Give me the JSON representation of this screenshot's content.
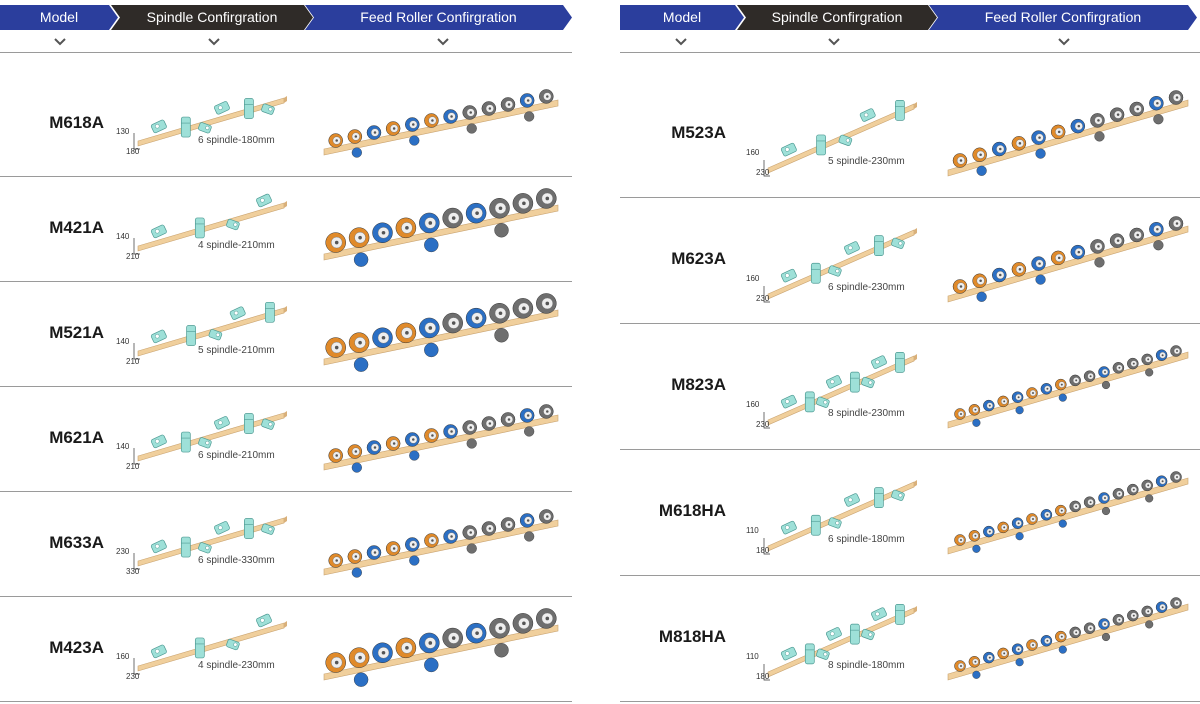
{
  "headers": {
    "model": "Model",
    "spindle": "Spindle Confirgration",
    "feed": "Feed Roller Confirgration"
  },
  "left_rows": [
    {
      "model": "M618A",
      "spindle_label": "6 spindle-180mm",
      "dim_a": "130",
      "dim_b": "180",
      "spindles": 6,
      "rollers": "light"
    },
    {
      "model": "M421A",
      "spindle_label": "4 spindle-210mm",
      "dim_a": "140",
      "dim_b": "210",
      "spindles": 4,
      "rollers": "heavy"
    },
    {
      "model": "M521A",
      "spindle_label": "5 spindle-210mm",
      "dim_a": "140",
      "dim_b": "210",
      "spindles": 5,
      "rollers": "heavy"
    },
    {
      "model": "M621A",
      "spindle_label": "6 spindle-210mm",
      "dim_a": "140",
      "dim_b": "210",
      "spindles": 6,
      "rollers": "light"
    },
    {
      "model": "M633A",
      "spindle_label": "6 spindle-330mm",
      "dim_a": "230",
      "dim_b": "330",
      "spindles": 6,
      "rollers": "light"
    },
    {
      "model": "M423A",
      "spindle_label": "4 spindle-230mm",
      "dim_a": "160",
      "dim_b": "230",
      "spindles": 4,
      "rollers": "heavy"
    }
  ],
  "right_rows": [
    {
      "model": "M523A",
      "spindle_label": "5 spindle-230mm",
      "dim_a": "160",
      "dim_b": "230",
      "spindles": 5,
      "rollers": "light"
    },
    {
      "model": "M623A",
      "spindle_label": "6 spindle-230mm",
      "dim_a": "160",
      "dim_b": "230",
      "spindles": 6,
      "rollers": "light"
    },
    {
      "model": "M823A",
      "spindle_label": "8 spindle-230mm",
      "dim_a": "160",
      "dim_b": "230",
      "spindles": 8,
      "rollers": "long"
    },
    {
      "model": "M618HA",
      "spindle_label": "6 spindle-180mm",
      "dim_a": "110",
      "dim_b": "180",
      "spindles": 6,
      "rollers": "long"
    },
    {
      "model": "M818HA",
      "spindle_label": "8 spindle-180mm",
      "dim_a": "110",
      "dim_b": "180",
      "spindles": 8,
      "rollers": "long"
    }
  ],
  "colors": {
    "header_blue": "#2b3e9d",
    "header_dark": "#2f2b28",
    "wood": "#f0cf9c",
    "spindle": "#9ee0d8",
    "roller_blue": "#2b6fc4",
    "roller_orange": "#e08a2a",
    "roller_grey": "#6e6e6e"
  }
}
